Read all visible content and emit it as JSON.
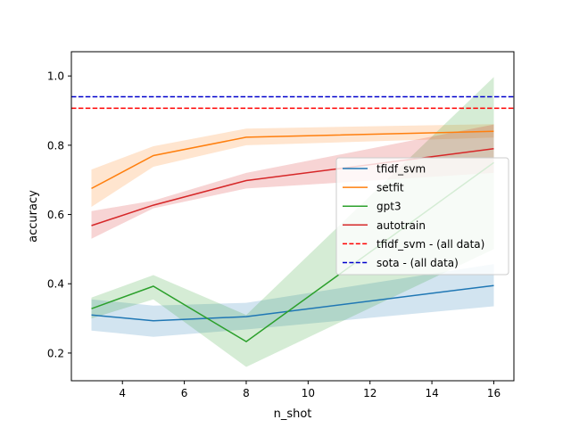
{
  "chart_data": {
    "type": "line",
    "title": "",
    "xlabel": "n_shot",
    "ylabel": "accuracy",
    "xlim": [
      2.35,
      16.65
    ],
    "ylim": [
      0.12,
      1.07
    ],
    "xticks": [
      4,
      6,
      8,
      10,
      12,
      14,
      16
    ],
    "yticks": [
      0.2,
      0.4,
      0.6,
      0.8,
      1.0
    ],
    "x": [
      3,
      5,
      8,
      16
    ],
    "series": [
      {
        "name": "tfidf_svm",
        "color": "#1f77b4",
        "values": [
          0.31,
          0.293,
          0.305,
          0.395
        ],
        "lower": [
          0.265,
          0.247,
          0.268,
          0.335
        ],
        "upper": [
          0.355,
          0.337,
          0.345,
          0.457
        ]
      },
      {
        "name": "setfit",
        "color": "#ff7f0e",
        "values": [
          0.675,
          0.77,
          0.823,
          0.84
        ],
        "lower": [
          0.622,
          0.738,
          0.8,
          0.822
        ],
        "upper": [
          0.73,
          0.797,
          0.848,
          0.861
        ]
      },
      {
        "name": "gpt3",
        "color": "#2ca02c",
        "values": [
          0.328,
          0.393,
          0.233,
          0.75
        ],
        "lower": [
          0.3,
          0.355,
          0.16,
          0.5
        ],
        "upper": [
          0.36,
          0.425,
          0.31,
          0.997
        ]
      },
      {
        "name": "autotrain",
        "color": "#d62728",
        "values": [
          0.568,
          0.627,
          0.698,
          0.79
        ],
        "lower": [
          0.53,
          0.618,
          0.675,
          0.72
        ],
        "upper": [
          0.61,
          0.64,
          0.72,
          0.86
        ]
      }
    ],
    "reference_lines": [
      {
        "name": "tfidf_svm - (all data)",
        "color": "#ff0000",
        "value": 0.907
      },
      {
        "name": "sota - (all data)",
        "color": "#0000cc",
        "value": 0.94
      }
    ],
    "legend_position": "center-right",
    "grid": false
  }
}
